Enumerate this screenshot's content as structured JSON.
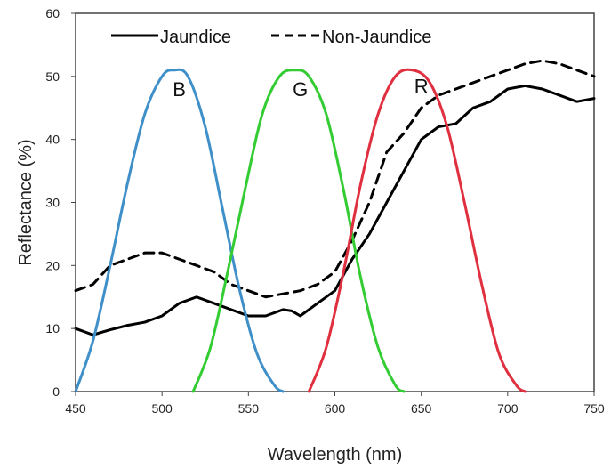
{
  "chart_data": {
    "type": "line",
    "title": "",
    "xlabel": "Wavelength (nm)",
    "ylabel": "Reflectance (%)",
    "xlim": [
      450,
      750
    ],
    "ylim": [
      0,
      60
    ],
    "xticks": [
      450,
      500,
      550,
      600,
      650,
      700,
      750
    ],
    "yticks": [
      0,
      10,
      20,
      30,
      40,
      50,
      60
    ],
    "grid": false,
    "legend_position": "top-left",
    "series": [
      {
        "name": "Jaundice",
        "style": "solid",
        "color": "#000000",
        "x": [
          450,
          460,
          470,
          480,
          490,
          500,
          510,
          520,
          530,
          540,
          550,
          560,
          570,
          575,
          580,
          590,
          600,
          610,
          620,
          630,
          640,
          650,
          660,
          670,
          680,
          690,
          700,
          710,
          720,
          730,
          740,
          750
        ],
        "y": [
          10,
          9,
          9.8,
          10.5,
          11,
          12,
          14,
          15,
          14,
          13,
          12,
          12,
          13,
          12.8,
          12,
          14,
          16,
          21,
          25,
          30,
          35,
          40,
          42,
          42.5,
          45,
          46,
          48,
          48.5,
          48,
          47,
          46,
          46.5
        ]
      },
      {
        "name": "Non-Jaundice",
        "style": "dashed",
        "color": "#000000",
        "x": [
          450,
          460,
          470,
          480,
          490,
          500,
          510,
          520,
          530,
          540,
          550,
          560,
          570,
          580,
          590,
          600,
          610,
          620,
          630,
          640,
          650,
          660,
          670,
          680,
          690,
          700,
          710,
          720,
          730,
          740,
          750
        ],
        "y": [
          16,
          17,
          20,
          21,
          22,
          22,
          21,
          20,
          19,
          17,
          16,
          15,
          15.5,
          16,
          17,
          19,
          24,
          30,
          38,
          41,
          45,
          47,
          48,
          49,
          50,
          51,
          52,
          52.5,
          52,
          51,
          50
        ]
      },
      {
        "name": "B",
        "style": "solid",
        "color": "#3f8fc9",
        "x": [
          450,
          460,
          470,
          480,
          490,
          500,
          507,
          515,
          525,
          535,
          545,
          555,
          565,
          570
        ],
        "y": [
          0,
          8,
          20,
          33,
          44,
          50,
          51,
          50,
          42,
          29,
          16,
          6,
          1,
          0
        ]
      },
      {
        "name": "G",
        "style": "solid",
        "color": "#33cc33",
        "x": [
          518,
          528,
          538,
          548,
          558,
          568,
          577,
          585,
          595,
          605,
          615,
          625,
          635,
          640
        ],
        "y": [
          0,
          7,
          19,
          32,
          44,
          50,
          51,
          50,
          44,
          32,
          18,
          7,
          1,
          0
        ]
      },
      {
        "name": "R",
        "style": "solid",
        "color": "#e03040",
        "x": [
          585,
          595,
          605,
          615,
          625,
          635,
          645,
          655,
          665,
          675,
          685,
          695,
          705,
          710
        ],
        "y": [
          0,
          7,
          19,
          33,
          44,
          50,
          51,
          49,
          42,
          30,
          17,
          6,
          1,
          0
        ]
      }
    ],
    "band_labels": [
      {
        "text": "B",
        "x": 510,
        "y": 48,
        "color": "#000000"
      },
      {
        "text": "G",
        "x": 580,
        "y": 48,
        "color": "#000000"
      },
      {
        "text": "R",
        "x": 650,
        "y": 48.5,
        "color": "#000000"
      }
    ],
    "legend": [
      {
        "label": "Jaundice",
        "style": "solid"
      },
      {
        "label": "Non-Jaundice",
        "style": "dashed"
      }
    ]
  }
}
